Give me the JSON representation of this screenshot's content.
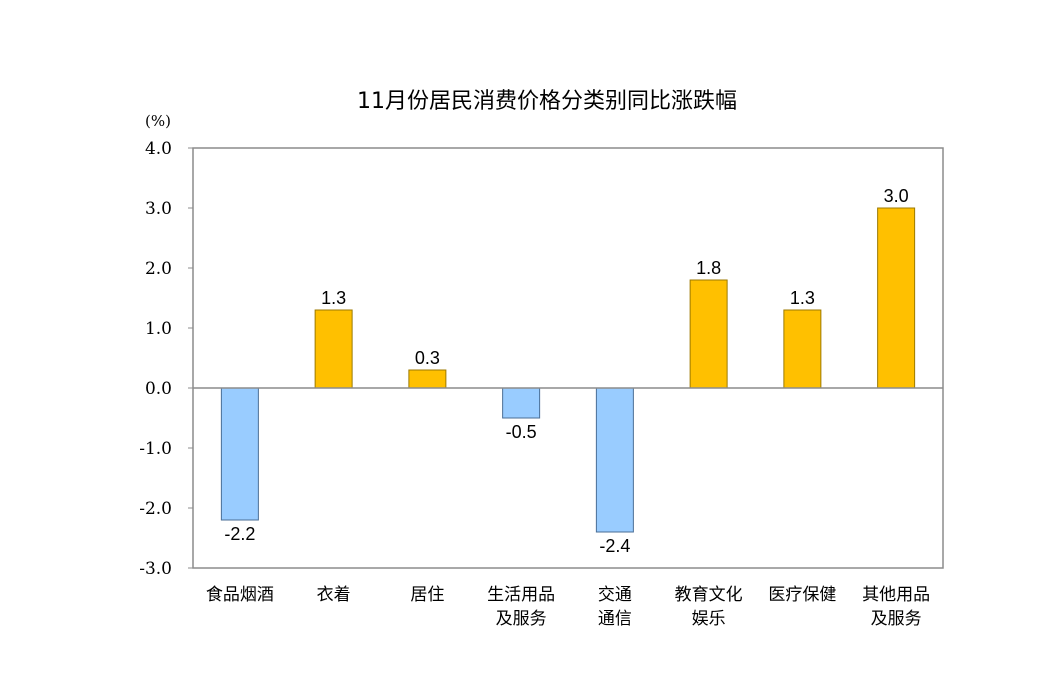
{
  "chart_data": {
    "type": "bar",
    "title": "11月份居民消费价格分类别同比涨跌幅",
    "unit_label": "(%)",
    "xlabel": "",
    "ylabel": "",
    "ylim": [
      -3.0,
      4.0
    ],
    "y_ticks": [
      "4.0",
      "3.0",
      "2.0",
      "1.0",
      "0.0",
      "-1.0",
      "-2.0",
      "-3.0"
    ],
    "y_tick_values": [
      4,
      3,
      2,
      1,
      0,
      -1,
      -2,
      -3
    ],
    "categories": [
      [
        "食品烟酒"
      ],
      [
        "衣着"
      ],
      [
        "居住"
      ],
      [
        "生活用品",
        "及服务"
      ],
      [
        "交通",
        "通信"
      ],
      [
        "教育文化",
        "娱乐"
      ],
      [
        "医疗保健"
      ],
      [
        "其他用品",
        "及服务"
      ]
    ],
    "values": [
      -2.2,
      1.3,
      0.3,
      -0.5,
      -2.4,
      1.8,
      1.3,
      3.0
    ],
    "value_labels": [
      "-2.2",
      "1.3",
      "0.3",
      "-0.5",
      "-2.4",
      "1.8",
      "1.3",
      "3.0"
    ],
    "grid": false,
    "legend": "none",
    "colors": {
      "positive_fill": "#FFC000",
      "positive_stroke": "#9C7A00",
      "negative_fill": "#99CCFF",
      "negative_stroke": "#4A6E96",
      "axis": "#8C8C8C",
      "zero_line": "#8C8C8C"
    }
  }
}
